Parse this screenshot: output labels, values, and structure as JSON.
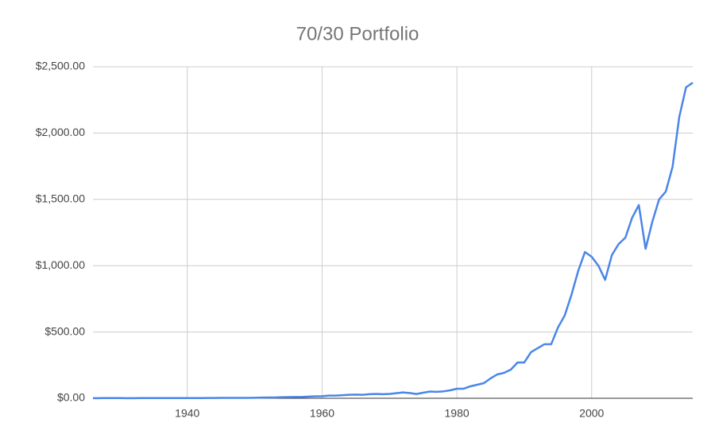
{
  "chart_data": {
    "type": "line",
    "title": "70/30 Portfolio",
    "x": [
      1926,
      1927,
      1928,
      1929,
      1930,
      1931,
      1932,
      1933,
      1934,
      1935,
      1936,
      1937,
      1938,
      1939,
      1940,
      1941,
      1942,
      1943,
      1944,
      1945,
      1946,
      1947,
      1948,
      1949,
      1950,
      1951,
      1952,
      1953,
      1954,
      1955,
      1956,
      1957,
      1958,
      1959,
      1960,
      1961,
      1962,
      1963,
      1964,
      1965,
      1966,
      1967,
      1968,
      1969,
      1970,
      1971,
      1972,
      1973,
      1974,
      1975,
      1976,
      1977,
      1978,
      1979,
      1980,
      1981,
      1982,
      1983,
      1984,
      1985,
      1986,
      1987,
      1988,
      1989,
      1990,
      1991,
      1992,
      1993,
      1994,
      1995,
      1996,
      1997,
      1998,
      1999,
      2000,
      2001,
      2002,
      2003,
      2004,
      2005,
      2006,
      2007,
      2008,
      2009,
      2010,
      2011,
      2012,
      2013,
      2014,
      2015
    ],
    "series": [
      {
        "name": "70/30 Portfolio",
        "color": "#4a86e8",
        "values": [
          1,
          1.1,
          1.4,
          1.3,
          1.2,
          0.9,
          0.9,
          1.2,
          1.2,
          1.5,
          1.8,
          1.4,
          1.7,
          1.7,
          1.6,
          1.5,
          1.7,
          2,
          2.3,
          2.8,
          2.7,
          2.8,
          2.9,
          3.3,
          3.8,
          5,
          6,
          6,
          8,
          9,
          10,
          10,
          13,
          15,
          16,
          20,
          20,
          23,
          26,
          28,
          26,
          31,
          33,
          31,
          33,
          38,
          44,
          40,
          32,
          42,
          51,
          49,
          52,
          60,
          72,
          72,
          90,
          102,
          114,
          150,
          180,
          192,
          216,
          270,
          270,
          348,
          378,
          408,
          408,
          534,
          624,
          780,
          960,
          1103,
          1067,
          1000,
          893,
          1080,
          1163,
          1211,
          1361,
          1457,
          1127,
          1331,
          1499,
          1559,
          1745,
          2122,
          2345,
          2380
        ]
      }
    ],
    "xlim": [
      1926,
      2015
    ],
    "xticks": [
      1940,
      1960,
      1980,
      2000
    ],
    "ylim": [
      0,
      2500
    ],
    "yticks": [
      {
        "value": 0,
        "label": "$0.00"
      },
      {
        "value": 500,
        "label": "$500.00"
      },
      {
        "value": 1000,
        "label": "$1,000.00"
      },
      {
        "value": 1500,
        "label": "$1,500.00"
      },
      {
        "value": 2000,
        "label": "$2,000.00"
      },
      {
        "value": 2500,
        "label": "$2,500.00"
      }
    ],
    "grid": true
  }
}
